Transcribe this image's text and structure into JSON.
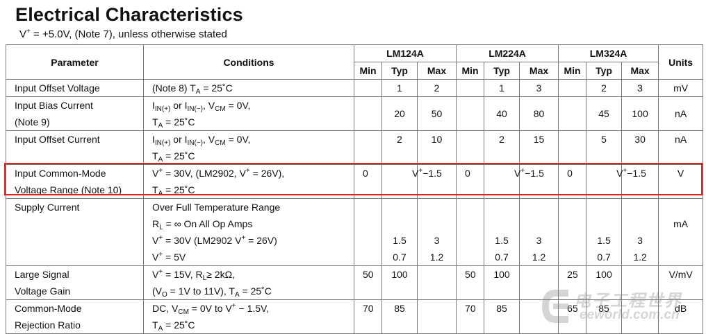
{
  "document": {
    "title": "Electrical Characteristics",
    "subtitle_prefix": "V",
    "subtitle_sup": "+",
    "subtitle_rest": " = +5.0V, (Note 7), unless otherwise stated"
  },
  "table": {
    "headers": {
      "parameter": "Parameter",
      "conditions": "Conditions",
      "groups": [
        "LM124A",
        "LM224A",
        "LM324A"
      ],
      "sub": [
        "Min",
        "Typ",
        "Max"
      ],
      "units": "Units"
    },
    "rows": {
      "offset_voltage": {
        "param": "Input Offset Voltage",
        "cond_note": "(Note 8) T",
        "cond_sub": "A",
        "cond_rest": " = 25˚C",
        "lm124": {
          "min": "",
          "typ": "1",
          "max": "2"
        },
        "lm224": {
          "min": "",
          "typ": "1",
          "max": "3"
        },
        "lm324": {
          "min": "",
          "typ": "2",
          "max": "3"
        },
        "units": "mV"
      },
      "bias_current": {
        "param1": "Input Bias Current",
        "param2": "(Note 9)",
        "c1_a": "I",
        "c1_a_sub": "IN(+)",
        "c1_b": " or I",
        "c1_b_sub": "IN(−)",
        "c1_c": ", V",
        "c1_c_sub": "CM",
        "c1_d": " = 0V,",
        "c2_a": "T",
        "c2_sub": "A",
        "c2_rest": " = 25˚C",
        "lm124": {
          "min": "",
          "typ": "20",
          "max": "50"
        },
        "lm224": {
          "min": "",
          "typ": "40",
          "max": "80"
        },
        "lm324": {
          "min": "",
          "typ": "45",
          "max": "100"
        },
        "units": "nA"
      },
      "offset_current": {
        "param": "Input Offset Current",
        "c1_a": "I",
        "c1_a_sub": "IN(+)",
        "c1_b": " or I",
        "c1_b_sub": "IN(−)",
        "c1_c": ", V",
        "c1_c_sub": "CM",
        "c1_d": " = 0V,",
        "c2_a": "T",
        "c2_sub": "A",
        "c2_rest": " = 25˚C",
        "lm124": {
          "min": "",
          "typ": "2",
          "max": "10"
        },
        "lm224": {
          "min": "",
          "typ": "2",
          "max": "15"
        },
        "lm324": {
          "min": "",
          "typ": "5",
          "max": "30"
        },
        "units": "nA"
      },
      "common_mode_range": {
        "param1": "Input Common-Mode",
        "param2": "Voltage Range (Note 10)",
        "c1_a": "V",
        "c1_sup": "+",
        "c1_b": " = 30V, (LM2902, V",
        "c1_sup2": "+",
        "c1_c": " = 26V),",
        "c2_a": "T",
        "c2_sub": "A",
        "c2_rest": " = 25˚C",
        "max_v": "V",
        "max_sup": "+",
        "max_rest": "−1.5",
        "lm124": {
          "min": "0",
          "typ": ""
        },
        "lm224": {
          "min": "0",
          "typ": ""
        },
        "lm324": {
          "min": "0",
          "typ": ""
        },
        "units": "V"
      },
      "supply_current": {
        "param": "Supply Current",
        "c1": "Over Full Temperature Range",
        "c2_a": "R",
        "c2_sub": "L",
        "c2_rest": " = ∞ On All Op Amps",
        "c3_a": "V",
        "c3_sup": "+",
        "c3_b": " = 30V (LM2902 V",
        "c3_sup2": "+",
        "c3_c": " = 26V)",
        "c4_a": "V",
        "c4_sup": "+",
        "c4_b": " = 5V",
        "lm124": {
          "typ1": "1.5",
          "max1": "3",
          "typ2": "0.7",
          "max2": "1.2"
        },
        "lm224": {
          "typ1": "1.5",
          "max1": "3",
          "typ2": "0.7",
          "max2": "1.2"
        },
        "lm324": {
          "typ1": "1.5",
          "max1": "3",
          "typ2": "0.7",
          "max2": "1.2"
        },
        "units": "mA"
      },
      "large_signal": {
        "param1": "Large Signal",
        "param2": "Voltage Gain",
        "c1_a": "V",
        "c1_sup": "+",
        "c1_b": " = 15V, R",
        "c1_sub": "L",
        "c1_c": "≥ 2kΩ,",
        "c2_a": "(V",
        "c2_sub": "O",
        "c2_b": " = 1V to 11V), T",
        "c2_sub2": "A",
        "c2_c": " = 25˚C",
        "lm124": {
          "min": "50",
          "typ": "100",
          "max": ""
        },
        "lm224": {
          "min": "50",
          "typ": "100",
          "max": ""
        },
        "lm324": {
          "min": "25",
          "typ": "100",
          "max": ""
        },
        "units": "V/mV"
      },
      "cmrr": {
        "param1": "Common-Mode",
        "param2": "Rejection Ratio",
        "c1_a": "DC, V",
        "c1_sub": "CM",
        "c1_b": " = 0V to V",
        "c1_sup": "+",
        "c1_c": " − 1.5V,",
        "c2_a": "T",
        "c2_sub": "A",
        "c2_rest": " = 25˚C",
        "lm124": {
          "min": "70",
          "typ": "85",
          "max": ""
        },
        "lm224": {
          "min": "70",
          "typ": "85",
          "max": ""
        },
        "lm324": {
          "min": "65",
          "typ": "85",
          "max": ""
        },
        "units": "dB"
      }
    }
  },
  "watermark": {
    "cn": "电子工程世界",
    "en": "eeworld.com.cn"
  }
}
